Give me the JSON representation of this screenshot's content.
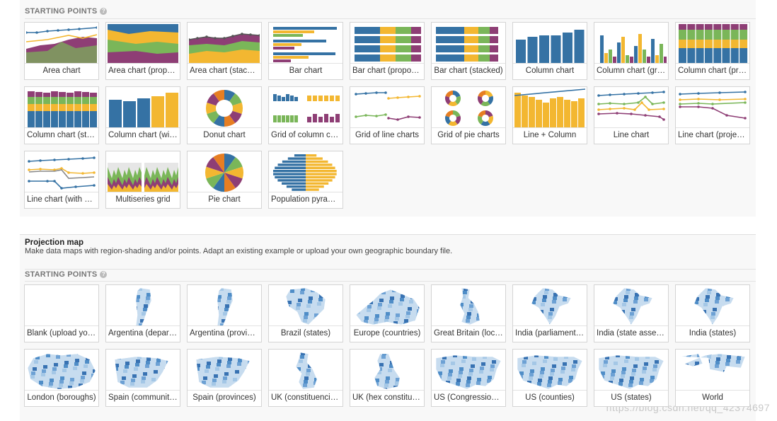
{
  "colors": {
    "blue": "#3572a4",
    "yellow": "#f3b731",
    "green": "#7ab659",
    "purple": "#8e3e75",
    "map_dark": "#1f5fa7",
    "map_mid": "#5d97cf",
    "map_light": "#c7dcef"
  },
  "section1": {
    "header": "STARTING POINTS",
    "tiles": [
      {
        "label": "Area chart",
        "icon": "area-chart"
      },
      {
        "label": "Area chart (proportional)",
        "icon": "area-proportional"
      },
      {
        "label": "Area chart (stacked)",
        "icon": "area-stacked"
      },
      {
        "label": "Bar chart",
        "icon": "bar-chart"
      },
      {
        "label": "Bar chart (proportional)",
        "icon": "bar-proportional"
      },
      {
        "label": "Bar chart (stacked)",
        "icon": "bar-stacked"
      },
      {
        "label": "Column chart",
        "icon": "column-chart"
      },
      {
        "label": "Column chart (grouped)",
        "icon": "column-grouped"
      },
      {
        "label": "Column chart (proportional)",
        "icon": "column-proportional"
      },
      {
        "label": "Column chart (stacked)",
        "icon": "column-stacked"
      },
      {
        "label": "Column chart (with highlighting)",
        "icon": "column-highlight"
      },
      {
        "label": "Donut chart",
        "icon": "donut-chart"
      },
      {
        "label": "Grid of column charts",
        "icon": "grid-columns"
      },
      {
        "label": "Grid of line charts",
        "icon": "grid-lines"
      },
      {
        "label": "Grid of pie charts",
        "icon": "grid-pies"
      },
      {
        "label": "Line + Column",
        "icon": "line-column"
      },
      {
        "label": "Line chart",
        "icon": "line-chart"
      },
      {
        "label": "Line chart (projected)",
        "icon": "line-projected"
      },
      {
        "label": "Line chart (with highlighting)",
        "icon": "line-highlight"
      },
      {
        "label": "Multiseries grid",
        "icon": "multiseries-grid"
      },
      {
        "label": "Pie chart",
        "icon": "pie-chart"
      },
      {
        "label": "Population pyramid",
        "icon": "population-pyramid"
      }
    ]
  },
  "section2": {
    "title": "Projection map",
    "description": "Make data maps with region-shading and/or points. Adapt an existing example or upload your own geographic boundary file.",
    "header": "STARTING POINTS",
    "tiles": [
      {
        "label": "Blank (upload your own)",
        "icon": "blank-map"
      },
      {
        "label": "Argentina (departments)",
        "icon": "map-argentina"
      },
      {
        "label": "Argentina (provinces)",
        "icon": "map-argentina"
      },
      {
        "label": "Brazil (states)",
        "icon": "map-brazil"
      },
      {
        "label": "Europe (countries)",
        "icon": "map-europe"
      },
      {
        "label": "Great Britain (local authorities)",
        "icon": "map-britain"
      },
      {
        "label": "India (parliamentary constituencies)",
        "icon": "map-india"
      },
      {
        "label": "India (state assembly constituencies)",
        "icon": "map-india"
      },
      {
        "label": "India (states)",
        "icon": "map-india"
      },
      {
        "label": "London (boroughs)",
        "icon": "map-london"
      },
      {
        "label": "Spain (communities)",
        "icon": "map-spain"
      },
      {
        "label": "Spain (provinces)",
        "icon": "map-spain"
      },
      {
        "label": "UK (constituencies)",
        "icon": "map-uk"
      },
      {
        "label": "UK (hex constituencies)",
        "icon": "map-uk-hex"
      },
      {
        "label": "US (Congressional districts)",
        "icon": "map-us"
      },
      {
        "label": "US (counties)",
        "icon": "map-us"
      },
      {
        "label": "US (states)",
        "icon": "map-us"
      },
      {
        "label": "World",
        "icon": "map-world"
      }
    ]
  },
  "watermark": "https://blog.csdn.net/qq_42374697"
}
